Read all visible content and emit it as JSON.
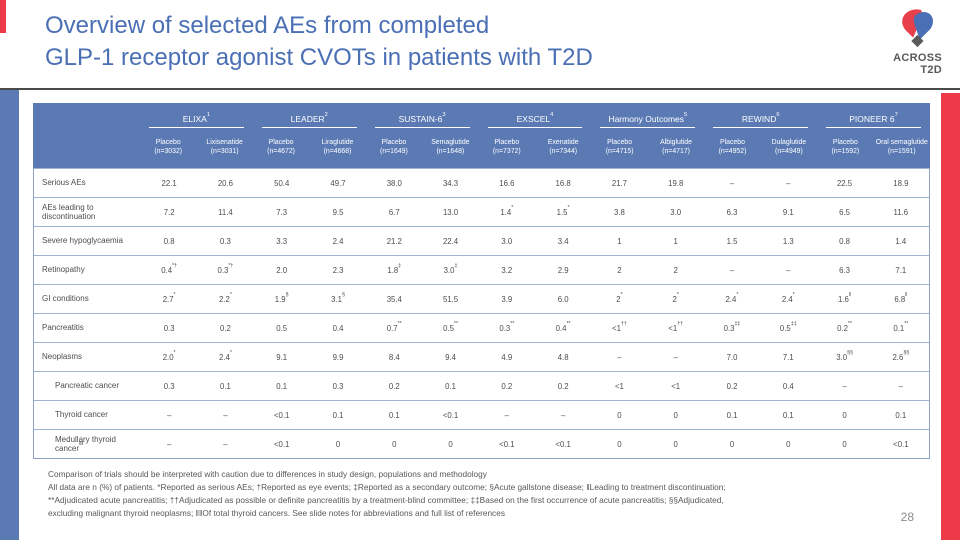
{
  "slide": {
    "title_line1": "Overview of selected AEs from completed",
    "title_line2": "GLP-1 receptor agonist CVOTs in patients with T2D",
    "page_number": "28",
    "logo": {
      "line1": "ACROSS",
      "line2": "T2D"
    }
  },
  "colors": {
    "title_blue": "#4a6fb5",
    "header_blue": "#5b7ab4",
    "bar_red": "#ed3a48",
    "text_gray": "#595959",
    "grid_line": "#9fb3d2"
  },
  "table": {
    "groups": [
      {
        "name": "ELIXA",
        "ref": "1",
        "cols": [
          {
            "drug": "Placebo",
            "n": "(n=3032)"
          },
          {
            "drug": "Lixisenatide",
            "n": "(n=3031)"
          }
        ]
      },
      {
        "name": "LEADER",
        "ref": "2",
        "cols": [
          {
            "drug": "Placebo",
            "n": "(n=4672)"
          },
          {
            "drug": "Liraglutide",
            "n": "(n=4668)"
          }
        ]
      },
      {
        "name": "SUSTAIN-6",
        "ref": "3",
        "cols": [
          {
            "drug": "Placebo",
            "n": "(n=1649)"
          },
          {
            "drug": "Semaglutide",
            "n": "(n=1648)"
          }
        ]
      },
      {
        "name": "EXSCEL",
        "ref": "4",
        "cols": [
          {
            "drug": "Placebo",
            "n": "(n=7372)"
          },
          {
            "drug": "Exenatide",
            "n": "(n=7344)"
          }
        ]
      },
      {
        "name": "Harmony Outcomes",
        "ref": "5",
        "cols": [
          {
            "drug": "Placebo",
            "n": "(n=4715)"
          },
          {
            "drug": "Albiglutide",
            "n": "(n=4717)"
          }
        ]
      },
      {
        "name": "REWIND",
        "ref": "6",
        "cols": [
          {
            "drug": "Placebo",
            "n": "(n=4952)"
          },
          {
            "drug": "Dulaglutide",
            "n": "(n=4949)"
          }
        ]
      },
      {
        "name": "PIONEER 6",
        "ref": "7",
        "cols": [
          {
            "drug": "Placebo",
            "n": "(n=1592)"
          },
          {
            "drug": "Oral semaglutide",
            "n": "(n=1591)"
          }
        ]
      }
    ],
    "rows": [
      {
        "label": "Serious AEs",
        "label_sup": "",
        "indent": false,
        "values": [
          "22.1",
          "20.6",
          "50.4",
          "49.7",
          "38.0",
          "34.3",
          "16.6",
          "16.8",
          "21.7",
          "19.8",
          "–",
          "–",
          "22.5",
          "18.9"
        ]
      },
      {
        "label": "AEs leading to discontinuation",
        "label_sup": "",
        "indent": false,
        "values": [
          "7.2",
          "11.4",
          "7.3",
          "9.5",
          "6.7",
          "13.0",
          "1.4*",
          "1.5*",
          "3.8",
          "3.0",
          "6.3",
          "9.1",
          "6.5",
          "11.6"
        ]
      },
      {
        "label": "Severe hypoglycaemia",
        "label_sup": "",
        "indent": false,
        "values": [
          "0.8",
          "0.3",
          "3.3",
          "2.4",
          "21.2",
          "22.4",
          "3.0",
          "3.4",
          "1",
          "1",
          "1.5",
          "1.3",
          "0.8",
          "1.4"
        ]
      },
      {
        "label": "Retinopathy",
        "label_sup": "",
        "indent": false,
        "values": [
          "0.4*†",
          "0.3*†",
          "2.0",
          "2.3",
          "1.8‡",
          "3.0‡",
          "3.2",
          "2.9",
          "2",
          "2",
          "–",
          "–",
          "6.3",
          "7.1"
        ]
      },
      {
        "label": "GI conditions",
        "label_sup": "",
        "indent": false,
        "values": [
          "2.7*",
          "2.2*",
          "1.9§",
          "3.1§",
          "35.4",
          "51.5",
          "3.9",
          "6.0",
          "2*",
          "2*",
          "2.4*",
          "2.4*",
          "1.6ǁ",
          "6.8ǁ"
        ]
      },
      {
        "label": "Pancreatitis",
        "label_sup": "",
        "indent": false,
        "values": [
          "0.3",
          "0.2",
          "0.5",
          "0.4",
          "0.7**",
          "0.5**",
          "0.3**",
          "0.4**",
          "<1††",
          "<1††",
          "0.3‡‡",
          "0.5‡‡",
          "0.2**",
          "0.1**"
        ]
      },
      {
        "label": "Neoplasms",
        "label_sup": "",
        "indent": false,
        "values": [
          "2.0*",
          "2.4*",
          "9.1",
          "9.9",
          "8.4",
          "9.4",
          "4.9",
          "4.8",
          "–",
          "–",
          "7.0",
          "7.1",
          "3.0§§",
          "2.6§§"
        ]
      },
      {
        "label": "Pancreatic cancer",
        "label_sup": "",
        "indent": true,
        "values": [
          "0.3",
          "0.1",
          "0.1",
          "0.3",
          "0.2",
          "0.1",
          "0.2",
          "0.2",
          "<1",
          "<1",
          "0.2",
          "0.4",
          "–",
          "–"
        ]
      },
      {
        "label": "Thyroid cancer",
        "label_sup": "",
        "indent": true,
        "values": [
          "–",
          "–",
          "<0.1",
          "0.1",
          "0.1",
          "<0.1",
          "–",
          "–",
          "0",
          "0",
          "0.1",
          "0.1",
          "0",
          "0.1"
        ]
      },
      {
        "label": "Medullary thyroid cancer",
        "label_sup": "ǁǁ",
        "indent": true,
        "values": [
          "–",
          "–",
          "<0.1",
          "0",
          "0",
          "0",
          "<0.1",
          "<0.1",
          "0",
          "0",
          "0",
          "0",
          "0",
          "<0.1"
        ]
      }
    ]
  },
  "footnotes": {
    "line1": "Comparison of trials should be interpreted with caution due to differences in study design, populations and methodology",
    "line2": "All data are n (%) of patients. *Reported as serious AEs; †Reported as eye events; ‡Reported as a secondary outcome; §Acute gallstone disease; ǁLeading to treatment discontinuation;",
    "line3": "**Adjudicated acute pancreatitis; ††Adjudicated as possible or definite pancreatitis by a treatment-blind committee; ‡‡Based on the first occurrence of acute pancreatitis; §§Adjudicated,",
    "line4": "excluding malignant thyroid neoplasms; ǁǁOf total thyroid cancers. See slide notes for abbreviations and full list of references"
  }
}
